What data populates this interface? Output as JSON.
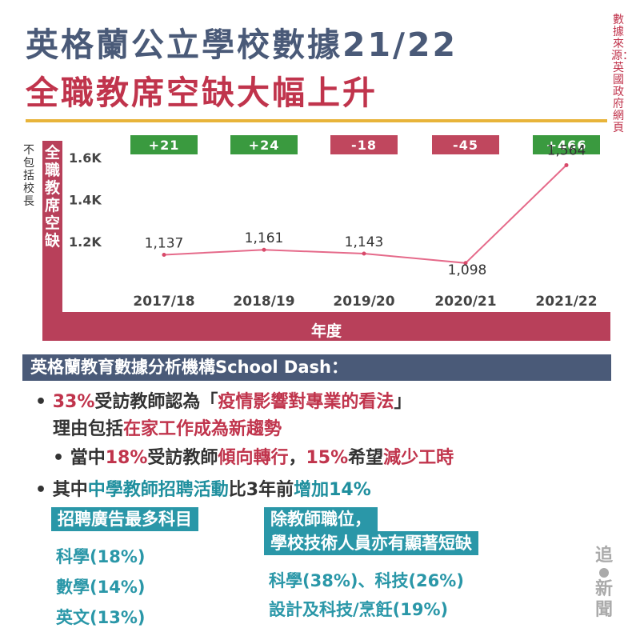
{
  "title": {
    "line1": "英格蘭公立學校數據21/22",
    "line2": "全職教席空缺大幅上升"
  },
  "source": "數據來源：英國政府網頁",
  "side_note": "不包括校長",
  "colors": {
    "navy": "#4a5a78",
    "crimson": "#c0344c",
    "gold": "#e8b43a",
    "green": "#3a9a3f",
    "rose": "#b8405a",
    "teal": "#2a97a8"
  },
  "chart_data": {
    "type": "line",
    "title": "",
    "xlabel": "年度",
    "ylabel": "全職教席空缺",
    "categories": [
      "2017/18",
      "2018/19",
      "2019/20",
      "2020/21",
      "2021/22"
    ],
    "values": [
      1137,
      1161,
      1143,
      1098,
      1564
    ],
    "data_labels": [
      "1,137",
      "1,161",
      "1,143",
      "1,098",
      "1,564"
    ],
    "changes": [
      "+21",
      "+24",
      "-18",
      "-45",
      "+466"
    ],
    "change_colors": [
      "#3a9a3f",
      "#3a9a3f",
      "#c0475e",
      "#c0475e",
      "#3a9a3f"
    ],
    "y_ticks": [
      {
        "value": 1200,
        "label": "1.2K"
      },
      {
        "value": 1400,
        "label": "1.4K"
      },
      {
        "value": 1600,
        "label": "1.6K"
      }
    ],
    "line_color": "#e56a8a",
    "grid": false
  },
  "analysis": {
    "header": "英格蘭教育數據分析機構School Dash：",
    "b1": {
      "dot": "•",
      "pct": "33%",
      "t1": "受訪教師認為「",
      "h1": "疫情影響對專業的看法",
      "t2": "」",
      "l2a": "理由包括",
      "l2b": "在家工作成為新趨勢"
    },
    "b2": {
      "dot": "•",
      "t1": "當中",
      "p1": "18%",
      "t2": "受訪教師",
      "h1": "傾向轉行",
      "t3": "，",
      "p2": "15%",
      "t4": "希望",
      "h2": "減少工時"
    },
    "b3": {
      "dot": "•",
      "t1": "其中",
      "h1": "中學教師招聘活動",
      "t2": "比3年前",
      "h2": "增加14%"
    }
  },
  "left_box": {
    "header": "招聘廣告最多科目",
    "items": [
      "科學(18%)",
      "數學(14%)",
      "英文(13%)"
    ]
  },
  "right_box": {
    "header_line1": "除教師職位，",
    "header_line2": "學校技術人員亦有顯著短缺",
    "items": [
      "科學(38%)、科技(26%)",
      "設計及科技/烹飪(19%)"
    ]
  },
  "logo": {
    "top": "追",
    "bottom": "新聞"
  }
}
